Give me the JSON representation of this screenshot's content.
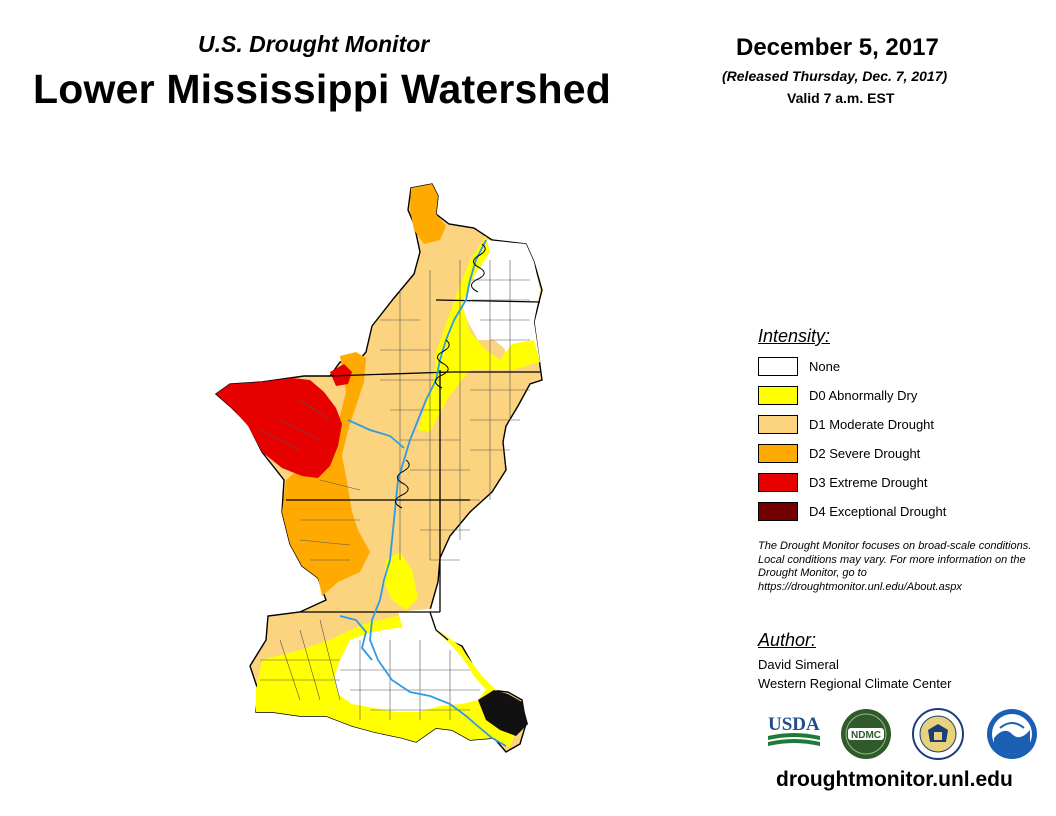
{
  "header": {
    "subtitle": "U.S. Drought Monitor",
    "title": "Lower Mississippi Watershed",
    "date": "December 5, 2017",
    "released": "(Released Thursday, Dec. 7, 2017)",
    "valid": "Valid 7 a.m. EST"
  },
  "legend": {
    "title": "Intensity:",
    "items": [
      {
        "label": "None",
        "color": "#ffffff"
      },
      {
        "label": "D0 Abnormally Dry",
        "color": "#ffff00"
      },
      {
        "label": "D1 Moderate Drought",
        "color": "#fcd37f"
      },
      {
        "label": "D2 Severe Drought",
        "color": "#ffaa00"
      },
      {
        "label": "D3 Extreme Drought",
        "color": "#e60000"
      },
      {
        "label": "D4 Exceptional Drought",
        "color": "#730000"
      }
    ]
  },
  "note": "The Drought Monitor focuses on broad-scale conditions. Local conditions may vary. For more information on the Drought Monitor, go to https://droughtmonitor.unl.edu/About.aspx",
  "author": {
    "title": "Author:",
    "name": "David Simeral",
    "organization": "Western Regional Climate Center"
  },
  "logos": {
    "usda": "USDA",
    "ndmc": "NDMC"
  },
  "website": "droughtmonitor.unl.edu",
  "colors": {
    "river": "#2e9be6",
    "state_border": "#000000",
    "county_border": "#555555"
  }
}
